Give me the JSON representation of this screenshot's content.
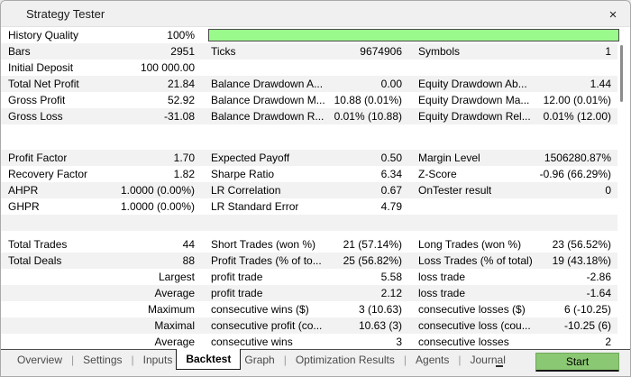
{
  "window": {
    "title": "Strategy Tester",
    "close_icon": "×"
  },
  "history_quality": {
    "label": "History Quality",
    "value": "100%",
    "bar_percent": 100
  },
  "colors": {
    "bar_fill": "#9afa8c",
    "bar_border": "#4a4a4a",
    "start_button": "#8bc873",
    "row_shade": "#f2f2f2"
  },
  "rows": [
    {
      "shade": true,
      "a": [
        "Bars",
        "2951"
      ],
      "b": [
        "Ticks",
        "9674906"
      ],
      "c": [
        "Symbols",
        "1"
      ]
    },
    {
      "shade": false,
      "a": [
        "Initial Deposit",
        "100 000.00"
      ],
      "b": [
        "",
        ""
      ],
      "c": [
        "",
        ""
      ]
    },
    {
      "shade": true,
      "a": [
        "Total Net Profit",
        "21.84"
      ],
      "b": [
        "Balance Drawdown A...",
        "0.00"
      ],
      "c": [
        "Equity Drawdown Ab...",
        "1.44"
      ]
    },
    {
      "shade": false,
      "a": [
        "Gross Profit",
        "52.92"
      ],
      "b": [
        "Balance Drawdown M...",
        "10.88 (0.01%)"
      ],
      "c": [
        "Equity Drawdown Ma...",
        "12.00 (0.01%)"
      ]
    },
    {
      "shade": true,
      "a": [
        "Gross Loss",
        "-31.08"
      ],
      "b": [
        "Balance Drawdown R...",
        "0.01% (10.88)"
      ],
      "c": [
        "Equity Drawdown Rel...",
        "0.01% (12.00)"
      ]
    },
    {
      "gap": 28,
      "shade": false
    },
    {
      "shade": true,
      "a": [
        "Profit Factor",
        "1.70"
      ],
      "b": [
        "Expected Payoff",
        "0.50"
      ],
      "c": [
        "Margin Level",
        "1506280.87%"
      ]
    },
    {
      "shade": false,
      "a": [
        "Recovery Factor",
        "1.82"
      ],
      "b": [
        "Sharpe Ratio",
        "6.34"
      ],
      "c": [
        "Z-Score",
        "-0.96 (66.29%)"
      ]
    },
    {
      "shade": true,
      "a": [
        "AHPR",
        "1.0000 (0.00%)"
      ],
      "b": [
        "LR Correlation",
        "0.67"
      ],
      "c": [
        "OnTester result",
        "0"
      ]
    },
    {
      "shade": false,
      "a": [
        "GHPR",
        "1.0000 (0.00%)"
      ],
      "b": [
        "LR Standard Error",
        "4.79"
      ],
      "c": [
        "",
        ""
      ]
    },
    {
      "gap": 18,
      "shade": true
    },
    {
      "gap": 6,
      "shade": false
    },
    {
      "shade": false,
      "a": [
        "Total Trades",
        "44"
      ],
      "b": [
        "Short Trades (won %)",
        "21 (57.14%)"
      ],
      "c": [
        "Long Trades (won %)",
        "23 (56.52%)"
      ]
    },
    {
      "shade": true,
      "a": [
        "Total Deals",
        "88"
      ],
      "b": [
        "Profit Trades (% of to...",
        "25 (56.82%)"
      ],
      "c": [
        "Loss Trades (% of total)",
        "19 (43.18%)"
      ]
    },
    {
      "shade": false,
      "a": [
        "",
        "Largest"
      ],
      "b": [
        "profit trade",
        "5.58"
      ],
      "c": [
        "loss trade",
        "-2.86"
      ]
    },
    {
      "shade": true,
      "a": [
        "",
        "Average"
      ],
      "b": [
        "profit trade",
        "2.12"
      ],
      "c": [
        "loss trade",
        "-1.64"
      ]
    },
    {
      "shade": false,
      "a": [
        "",
        "Maximum"
      ],
      "b": [
        "consecutive wins ($)",
        "3 (10.63)"
      ],
      "c": [
        "consecutive losses ($)",
        "6 (-10.25)"
      ]
    },
    {
      "shade": true,
      "a": [
        "",
        "Maximal"
      ],
      "b": [
        "consecutive profit (co...",
        "10.63 (3)"
      ],
      "c": [
        "consecutive loss (cou...",
        "-10.25 (6)"
      ]
    },
    {
      "shade": false,
      "a": [
        "",
        "Average"
      ],
      "b": [
        "consecutive wins",
        "3"
      ],
      "c": [
        "consecutive losses",
        "2"
      ]
    }
  ],
  "tab_separator": "|",
  "tabs": [
    {
      "label": "Overview",
      "active": false
    },
    {
      "label": "Settings",
      "active": false
    },
    {
      "label": "Inputs",
      "active": false
    },
    {
      "label": "Backtest",
      "active": true
    },
    {
      "label": "Graph",
      "active": false
    },
    {
      "label": "Optimization Results",
      "active": false
    },
    {
      "label": "Agents",
      "active": false
    },
    {
      "label": "Journal",
      "active": false
    }
  ],
  "start_button": {
    "label": "Start"
  }
}
